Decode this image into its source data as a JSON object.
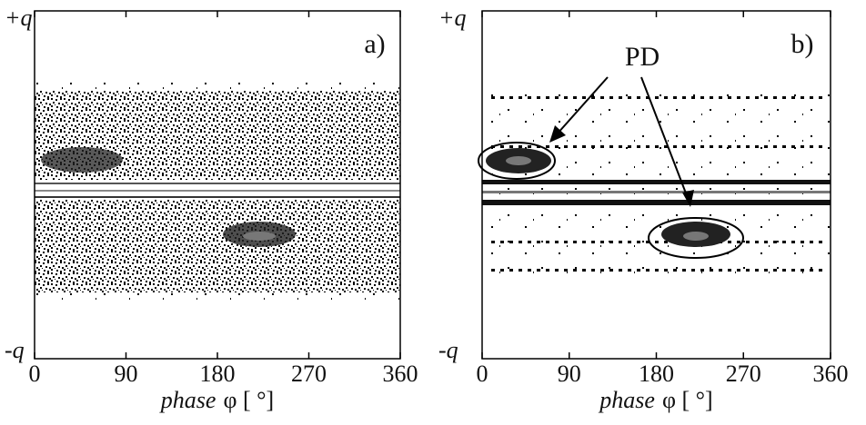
{
  "chart_data": [
    {
      "type": "scatter",
      "panel_label": "a)",
      "y_top_label": "+q",
      "y_bottom_label": "-q",
      "xlabel": [
        "phase",
        "φ [ °]"
      ],
      "xlim": [
        0,
        360
      ],
      "xticks": [
        0,
        90,
        180,
        270,
        360
      ]
    },
    {
      "type": "scatter",
      "panel_label": "b)",
      "y_top_label": "+q",
      "y_bottom_label": "-q",
      "xlabel": [
        "phase",
        "φ [ °]"
      ],
      "xlim": [
        0,
        360
      ],
      "xticks": [
        0,
        90,
        180,
        270,
        360
      ],
      "annotation": "PD"
    }
  ]
}
